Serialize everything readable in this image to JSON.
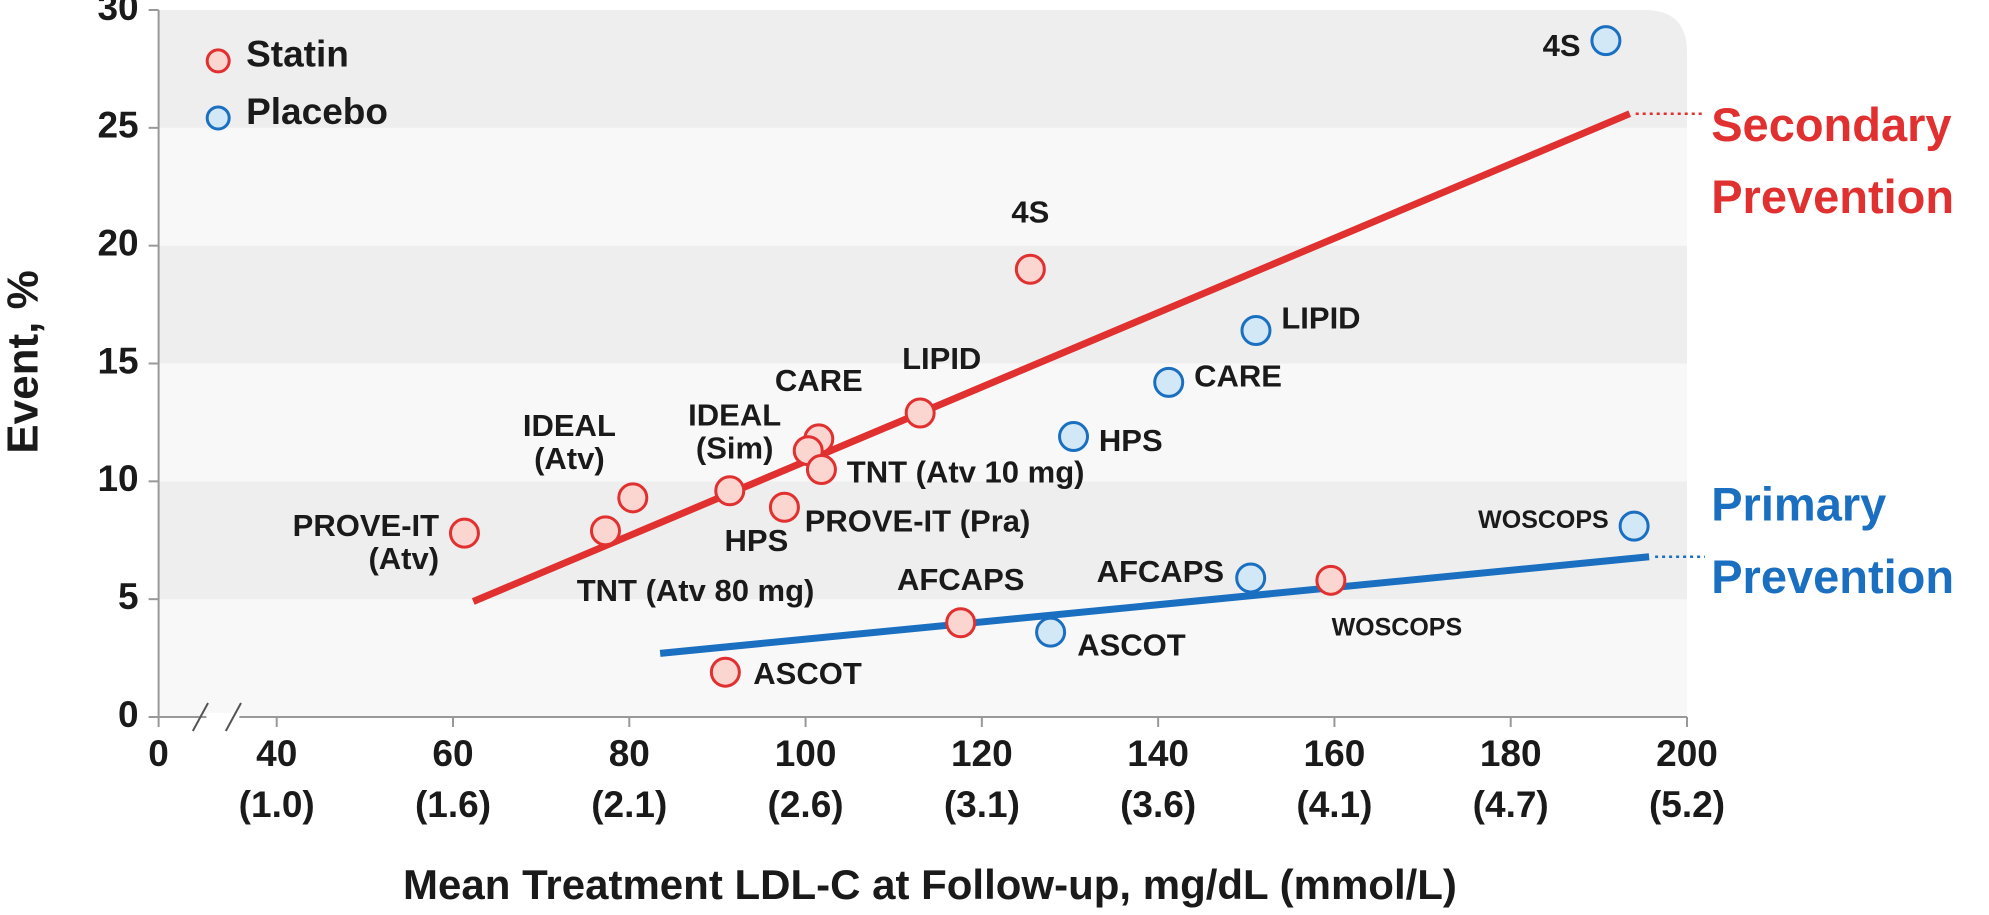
{
  "chart_data": {
    "type": "scatter",
    "x_label": "Mean Treatment LDL-C at Follow-up, mg/dL (mmol/L)",
    "y_label": "Event, %",
    "xlim": [
      0,
      200
    ],
    "ylim": [
      0,
      30
    ],
    "x_axis_break": true,
    "background_bands": true,
    "legend": "upper left",
    "xticks": [
      0,
      {
        "value": 40,
        "label": "40",
        "sublabel": "(1.0)"
      },
      {
        "value": 60,
        "label": "60",
        "sublabel": "(1.6)"
      },
      {
        "value": 80,
        "label": "80",
        "sublabel": "(2.1)"
      },
      {
        "value": 100,
        "label": "100",
        "sublabel": "(2.6)"
      },
      {
        "value": 120,
        "label": "120",
        "sublabel": "(3.1)"
      },
      {
        "value": 140,
        "label": "140",
        "sublabel": "(3.6)"
      },
      {
        "value": 160,
        "label": "160",
        "sublabel": "(4.1)"
      },
      {
        "value": 180,
        "label": "180",
        "sublabel": "(4.7)"
      },
      {
        "value": 200,
        "label": "200",
        "sublabel": "(5.2)"
      }
    ],
    "yticks": [
      0,
      5,
      10,
      15,
      20,
      25,
      30
    ],
    "series": [
      {
        "name": "Statin",
        "color": "#e0302f",
        "fill": "#fbd6d0",
        "x": [
          125.5,
          113,
          101.5,
          100.3,
          101.8,
          80.4,
          91.4,
          97.6,
          77.3,
          61.3,
          117.6,
          90.9,
          159.6
        ],
        "values": [
          19,
          12.9,
          11.8,
          11.3,
          10.5,
          9.3,
          9.6,
          8.9,
          7.9,
          7.8,
          4.0,
          1.9,
          5.8
        ],
        "labels": [
          [
            "4S"
          ],
          [
            "LIPID"
          ],
          [
            "CARE"
          ],
          [
            "IDEAL",
            "(Sim)"
          ],
          [
            "TNT (Atv 10 mg)"
          ],
          [
            "IDEAL",
            "(Atv)"
          ],
          [
            "HPS"
          ],
          [
            "PROVE-IT (Pra)"
          ],
          [
            "TNT (Atv 80 mg)"
          ],
          [
            "PROVE-IT",
            "(Atv)"
          ],
          [
            "AFCAPS"
          ],
          [
            "ASCOT"
          ],
          [
            "WOSCOPS"
          ]
        ]
      },
      {
        "name": "Placebo",
        "color": "#1a6fc0",
        "fill": "#d3e8f7",
        "x": [
          190.8,
          151.1,
          141.2,
          130.4,
          194,
          150.5,
          127.8
        ],
        "values": [
          28.7,
          16.4,
          14.2,
          11.9,
          8.1,
          5.9,
          3.6
        ],
        "labels": [
          [
            "4S"
          ],
          [
            "LIPID"
          ],
          [
            "CARE"
          ],
          [
            "HPS"
          ],
          [
            "WOSCOPS"
          ],
          [
            "AFCAPS"
          ],
          [
            "ASCOT"
          ]
        ]
      }
    ],
    "trend_lines": [
      {
        "labels": [
          "Secondary",
          "Prevention"
        ],
        "color": "#e0302f",
        "x": [
          62.3,
          193.5
        ],
        "values": [
          4.9,
          25.6
        ]
      },
      {
        "labels": [
          "Primary",
          "Prevention"
        ],
        "color": "#1a6fc0",
        "x": [
          83.5,
          195.7
        ],
        "values": [
          2.7,
          6.8
        ]
      }
    ]
  }
}
